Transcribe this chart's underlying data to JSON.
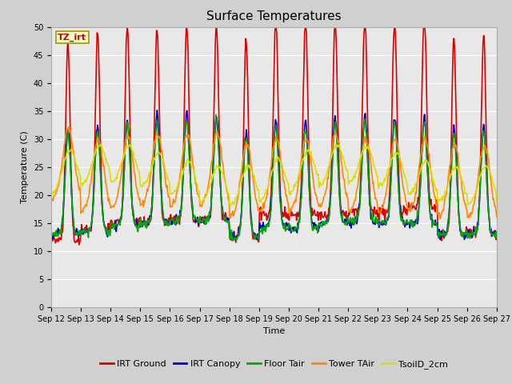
{
  "title": "Surface Temperatures",
  "xlabel": "Time",
  "ylabel": "Temperature (C)",
  "ylim": [
    0,
    50
  ],
  "yticks": [
    0,
    5,
    10,
    15,
    20,
    25,
    30,
    35,
    40,
    45,
    50
  ],
  "x_tick_labels": [
    "Sep 12",
    "Sep 13",
    "Sep 14",
    "Sep 15",
    "Sep 16",
    "Sep 17",
    "Sep 18",
    "Sep 19",
    "Sep 20",
    "Sep 21",
    "Sep 22",
    "Sep 23",
    "Sep 24",
    "Sep 25",
    "Sep 26",
    "Sep 27"
  ],
  "fig_bg_color": "#d0d0d0",
  "plot_bg_color": "#e8e8e8",
  "annotation_text": "TZ_irt",
  "annotation_color": "#cc0000",
  "annotation_bg": "#ffffcc",
  "annotation_border": "#999900",
  "series": {
    "IRT Ground": {
      "color": "#dd0000",
      "linewidth": 1.2
    },
    "IRT Canopy": {
      "color": "#0000cc",
      "linewidth": 1.2
    },
    "Floor Tair": {
      "color": "#00aa00",
      "linewidth": 1.2
    },
    "Tower TAir": {
      "color": "#ff8800",
      "linewidth": 1.2
    },
    "TsoilD_2cm": {
      "color": "#dddd00",
      "linewidth": 1.2
    }
  },
  "title_fontsize": 11,
  "tick_fontsize": 7,
  "label_fontsize": 8,
  "legend_fontsize": 8
}
